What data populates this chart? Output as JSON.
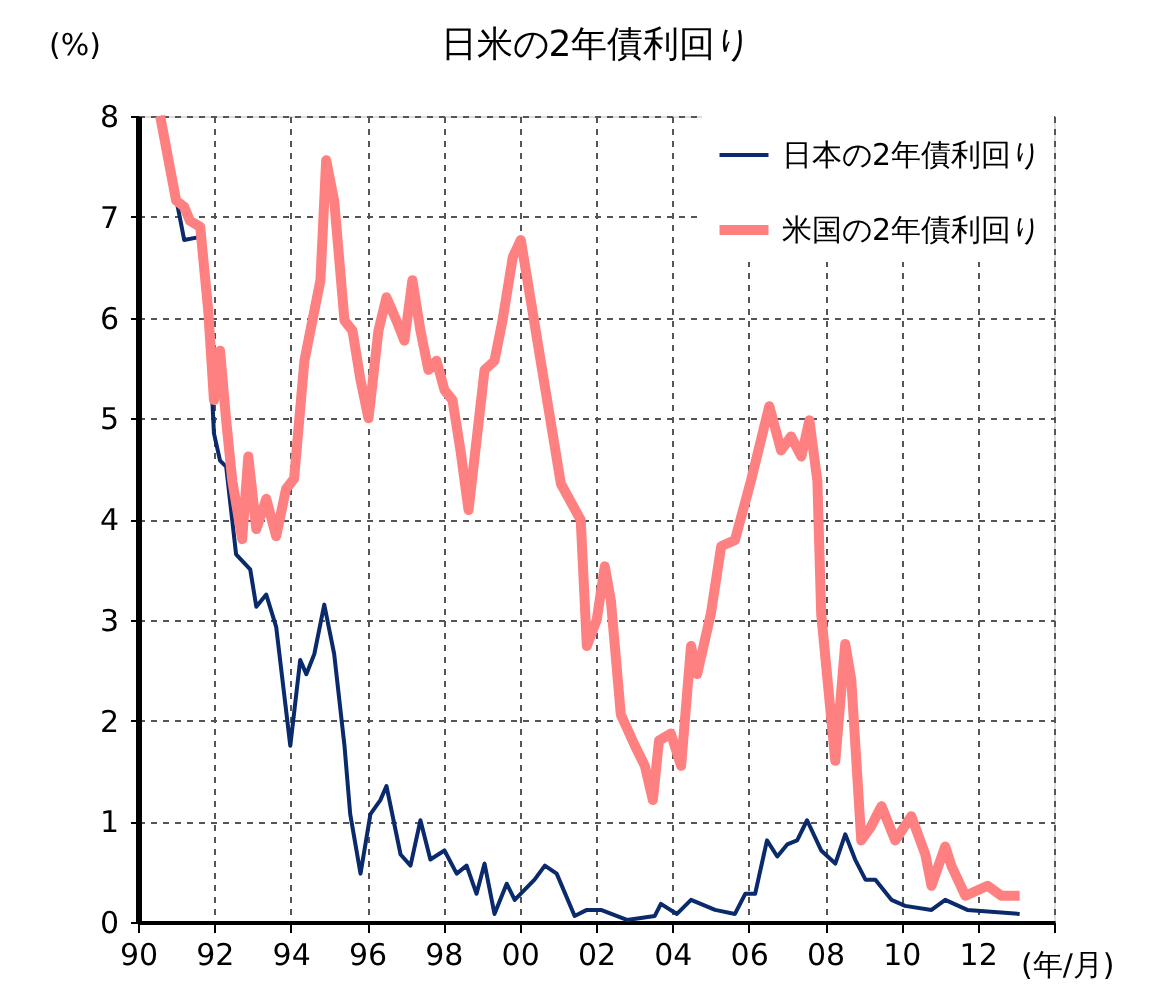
{
  "chart_data": {
    "type": "line",
    "title": "日米の2年債利回り",
    "ylabel": "(%)",
    "xlabel": "(年/月)",
    "xlim": [
      1990,
      2014
    ],
    "ylim": [
      0,
      8
    ],
    "xticks": [
      {
        "value": 1990,
        "label": "90"
      },
      {
        "value": 1992,
        "label": "92"
      },
      {
        "value": 1994,
        "label": "94"
      },
      {
        "value": 1996,
        "label": "96"
      },
      {
        "value": 1998,
        "label": "98"
      },
      {
        "value": 2000,
        "label": "00"
      },
      {
        "value": 2002,
        "label": "02"
      },
      {
        "value": 2004,
        "label": "04"
      },
      {
        "value": 2006,
        "label": "06"
      },
      {
        "value": 2008,
        "label": "08"
      },
      {
        "value": 2010,
        "label": "10"
      },
      {
        "value": 2012,
        "label": "12"
      },
      {
        "value": 2014,
        "label": null
      }
    ],
    "yticks": [
      0,
      1,
      2,
      3,
      4,
      5,
      6,
      7,
      8
    ],
    "grid": true,
    "legend": "top right",
    "line_style": "solid",
    "marker": "none",
    "series": [
      {
        "name": "日本の2年債利回り",
        "color": "#0a2a6b",
        "x": [
          1990.58,
          1991.21,
          1991.63,
          1991.84,
          1991.99,
          1992.15,
          1992.31,
          1992.57,
          1992.94,
          1993.1,
          1993.36,
          1993.62,
          1993.99,
          1994.25,
          1994.41,
          1994.62,
          1994.88,
          1995.14,
          1995.41,
          1995.56,
          1995.83,
          1996.09,
          1996.35,
          1996.51,
          1996.88,
          1997.14,
          1997.4,
          1997.66,
          1998.03,
          1998.35,
          1998.61,
          1998.87,
          1999.08,
          1999.34,
          1999.66,
          1999.87,
          2000.39,
          2000.66,
          2000.97,
          2001.44,
          2001.76,
          2002.13,
          2002.81,
          2003.54,
          2003.7,
          2004.12,
          2004.49,
          2005.12,
          2005.64,
          2005.91,
          2006.17,
          2006.48,
          2006.75,
          2007.01,
          2007.27,
          2007.53,
          2007.9,
          2008.27,
          2008.53,
          2008.79,
          2009.06,
          2009.32,
          2009.74,
          2010.1,
          2010.79,
          2011.15,
          2011.73,
          2013.1
        ],
        "values": [
          8.0,
          6.77,
          6.8,
          6.0,
          4.85,
          4.58,
          4.52,
          3.65,
          3.5,
          3.13,
          3.25,
          2.93,
          1.75,
          2.6,
          2.46,
          2.66,
          3.15,
          2.66,
          1.75,
          1.07,
          0.48,
          1.07,
          1.21,
          1.35,
          0.67,
          0.56,
          1.01,
          0.62,
          0.71,
          0.48,
          0.56,
          0.28,
          0.58,
          0.08,
          0.38,
          0.22,
          0.42,
          0.56,
          0.48,
          0.06,
          0.12,
          0.12,
          0.02,
          0.06,
          0.18,
          0.08,
          0.22,
          0.12,
          0.08,
          0.28,
          0.28,
          0.81,
          0.65,
          0.77,
          0.81,
          1.01,
          0.71,
          0.58,
          0.87,
          0.62,
          0.42,
          0.42,
          0.22,
          0.16,
          0.12,
          0.22,
          0.12,
          0.08
        ]
      },
      {
        "name": "米国の2年債利回り",
        "color": "#ff8080",
        "x": [
          1990.58,
          1991.0,
          1991.21,
          1991.36,
          1991.63,
          1991.84,
          1991.99,
          1992.15,
          1992.31,
          1992.47,
          1992.73,
          1992.89,
          1993.1,
          1993.36,
          1993.62,
          1993.88,
          1994.09,
          1994.36,
          1994.57,
          1994.78,
          1994.93,
          1995.14,
          1995.41,
          1995.62,
          1995.83,
          1996.04,
          1996.3,
          1996.51,
          1996.77,
          1996.98,
          1997.19,
          1997.4,
          1997.61,
          1997.82,
          1998.03,
          1998.24,
          1998.45,
          1998.66,
          1998.87,
          1999.08,
          1999.34,
          1999.55,
          1999.82,
          2000.03,
          2000.29,
          2000.55,
          2001.08,
          2001.6,
          2001.76,
          2002.02,
          2002.23,
          2002.39,
          2002.65,
          2003.02,
          2003.28,
          2003.49,
          2003.65,
          2003.96,
          2004.23,
          2004.49,
          2004.65,
          2005.01,
          2005.28,
          2005.64,
          2006.06,
          2006.54,
          2006.85,
          2007.11,
          2007.38,
          2007.59,
          2007.8,
          2007.9,
          2008.27,
          2008.53,
          2008.69,
          2008.95,
          2009.21,
          2009.48,
          2009.84,
          2010.26,
          2010.63,
          2010.79,
          2011.15,
          2011.31,
          2011.68,
          2012.26,
          2012.62,
          2013.1
        ],
        "values": [
          8.0,
          7.16,
          7.1,
          6.96,
          6.9,
          6.07,
          5.18,
          5.67,
          4.98,
          4.38,
          3.8,
          4.62,
          3.9,
          4.2,
          3.83,
          4.3,
          4.4,
          5.57,
          5.97,
          6.37,
          7.56,
          7.16,
          5.97,
          5.87,
          5.38,
          5.0,
          5.87,
          6.2,
          5.97,
          5.77,
          6.37,
          5.87,
          5.48,
          5.57,
          5.28,
          5.18,
          4.68,
          4.09,
          4.78,
          5.48,
          5.57,
          5.97,
          6.6,
          6.77,
          6.17,
          5.57,
          4.35,
          3.99,
          2.74,
          3.0,
          3.53,
          3.19,
          2.06,
          1.75,
          1.55,
          1.21,
          1.8,
          1.87,
          1.55,
          2.74,
          2.46,
          3.06,
          3.73,
          3.79,
          4.38,
          5.12,
          4.68,
          4.82,
          4.62,
          4.98,
          4.38,
          3.06,
          1.6,
          2.76,
          2.4,
          0.81,
          0.95,
          1.15,
          0.81,
          1.05,
          0.67,
          0.36,
          0.75,
          0.56,
          0.26,
          0.36,
          0.26,
          0.26
        ]
      }
    ]
  }
}
